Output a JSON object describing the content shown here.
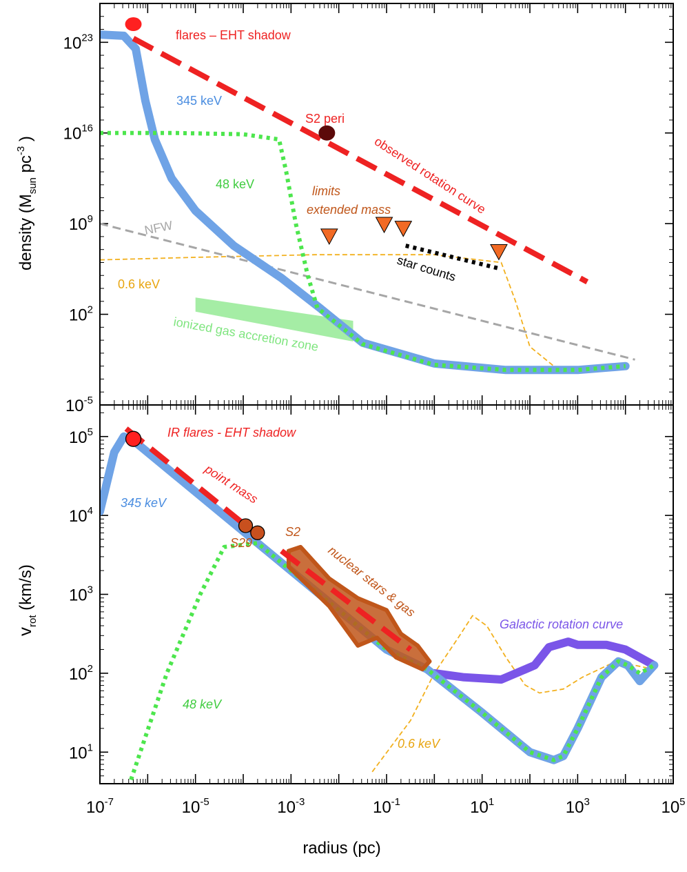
{
  "chart_data": [
    {
      "type": "line",
      "panel": "top",
      "xlabel": "radius (pc)",
      "ylabel": "density (M",
      "ylabel_sub": "sun",
      "ylabel_unit": "pc",
      "ylabel_exp": "-3",
      "ylabel_close": ")",
      "xscale": "log10",
      "yscale": "log10",
      "xlim_log": [
        -7,
        5
      ],
      "ylim_log": [
        -5,
        26
      ],
      "y_tick_labels": [
        {
          "base": "10",
          "exp": "23",
          "log": 23
        },
        {
          "base": "10",
          "exp": "16",
          "log": 16
        },
        {
          "base": "10",
          "exp": "9",
          "log": 9
        },
        {
          "base": "10",
          "exp": "2",
          "log": 2
        },
        {
          "base": "10",
          "exp": "-5",
          "log": -5
        }
      ],
      "series": [
        {
          "name": "345 keV",
          "color": "#6fa3e6",
          "style": "solid-thick",
          "points": [
            [
              -7,
              23.6
            ],
            [
              -6.5,
              23.5
            ],
            [
              -6.25,
              22.5
            ],
            [
              -6.05,
              18.5
            ],
            [
              -5.85,
              15.5
            ],
            [
              -5.5,
              12.5
            ],
            [
              -5.0,
              10.0
            ],
            [
              -4.2,
              7.3
            ],
            [
              -3.2,
              4.8
            ],
            [
              -2.4,
              2.5
            ],
            [
              -1.5,
              -0.2
            ],
            [
              0.0,
              -1.8
            ],
            [
              1.5,
              -2.3
            ],
            [
              3.0,
              -2.3
            ],
            [
              4.0,
              -2.0
            ]
          ]
        },
        {
          "name": "48 keV",
          "color": "#4de64d",
          "style": "dotted",
          "points": [
            [
              -7,
              16.0
            ],
            [
              -5.5,
              16.0
            ],
            [
              -4.0,
              15.9
            ],
            [
              -3.25,
              15.5
            ],
            [
              -3.1,
              13.0
            ],
            [
              -2.9,
              9.0
            ],
            [
              -2.65,
              5.0
            ],
            [
              -2.45,
              2.5
            ],
            [
              -1.5,
              -0.3
            ],
            [
              0.0,
              -1.9
            ],
            [
              1.5,
              -2.3
            ],
            [
              3.0,
              -2.3
            ],
            [
              4.0,
              -2.0
            ]
          ]
        },
        {
          "name": "0.6 keV",
          "color": "#f2b01e",
          "style": "dashed-thin",
          "points": [
            [
              -7,
              6.2
            ],
            [
              -5.0,
              6.4
            ],
            [
              -2.5,
              6.6
            ],
            [
              0.0,
              6.6
            ],
            [
              1.4,
              6.0
            ],
            [
              1.7,
              3.0
            ],
            [
              2.0,
              -0.5
            ],
            [
              2.5,
              -2.0
            ],
            [
              3.0,
              -2.5
            ],
            [
              4.0,
              -2.0
            ]
          ]
        },
        {
          "name": "NFW",
          "color": "#a6a6a6",
          "style": "dashed",
          "points": [
            [
              -7,
              9.0
            ],
            [
              4.2,
              -1.5
            ]
          ]
        },
        {
          "name": "observed rotation curve",
          "color": "#ee2222",
          "style": "dashed-thick",
          "points": [
            [
              -6.3,
              23.3
            ],
            [
              3.2,
              4.5
            ]
          ]
        },
        {
          "name": "star counts",
          "color": "#000000",
          "style": "dotted",
          "points": [
            [
              -0.6,
              7.3
            ],
            [
              1.4,
              5.5
            ]
          ]
        }
      ],
      "markers": [
        {
          "label": "flares – EHT shadow",
          "x": -6.3,
          "y": 24.4,
          "color": "#ff2020",
          "kind": "circle"
        },
        {
          "label": "S2 peri",
          "x": -2.25,
          "y": 16.0,
          "color": "#5c0a0a",
          "kind": "circle"
        }
      ],
      "limits": [
        {
          "x": -2.2,
          "y": 8.0
        },
        {
          "x": -1.05,
          "y": 8.9
        },
        {
          "x": -0.65,
          "y": 8.6
        },
        {
          "x": 1.35,
          "y": 6.8
        }
      ],
      "band": {
        "label": "ionized gas accretion zone",
        "color": "#7fe57f",
        "x0": -5.0,
        "x1": -1.7,
        "y_top0": 3.3,
        "y_top1": 1.5,
        "y_bot0": 2.2,
        "y_bot1": -0.1
      },
      "labels": {
        "flares": "flares – EHT shadow",
        "keV345": "345 keV",
        "s2peri": "S2 peri",
        "observed": "observed rotation curve",
        "keV48": "48 keV",
        "limits": "limits",
        "extended": "extended mass",
        "nfw": "NFW",
        "starcounts": "star counts",
        "keV06": "0.6 keV",
        "ionized": "ionized gas accretion zone"
      }
    },
    {
      "type": "line",
      "panel": "bottom",
      "xlabel": "radius (pc)",
      "ylabel": "v",
      "ylabel_sub": "rot",
      "ylabel_unit": "(km/s)",
      "xscale": "log10",
      "yscale": "log10",
      "xlim_log": [
        -7,
        5
      ],
      "ylim_log": [
        0.6,
        5.4
      ],
      "x_tick_labels": [
        {
          "base": "10",
          "exp": "-7",
          "log": -7
        },
        {
          "base": "10",
          "exp": "-5",
          "log": -5
        },
        {
          "base": "10",
          "exp": "-3",
          "log": -3
        },
        {
          "base": "10",
          "exp": "-1",
          "log": -1
        },
        {
          "base": "10",
          "exp": "1",
          "log": 1
        },
        {
          "base": "10",
          "exp": "3",
          "log": 3
        },
        {
          "base": "10",
          "exp": "5",
          "log": 5
        }
      ],
      "y_tick_labels": [
        {
          "base": "10",
          "exp": "5",
          "log": 5
        },
        {
          "base": "10",
          "exp": "4",
          "log": 4
        },
        {
          "base": "10",
          "exp": "3",
          "log": 3
        },
        {
          "base": "10",
          "exp": "2",
          "log": 2
        },
        {
          "base": "10",
          "exp": "1",
          "log": 1
        }
      ],
      "series": [
        {
          "name": "345 keV",
          "color": "#6fa3e6",
          "style": "solid-thick",
          "points": [
            [
              -7,
              4.05
            ],
            [
              -6.7,
              4.8
            ],
            [
              -6.5,
              5.0
            ],
            [
              -6.3,
              4.95
            ],
            [
              -3.7,
              3.65
            ],
            [
              -1.0,
              2.3
            ],
            [
              -0.15,
              2.05
            ],
            [
              1.0,
              1.5
            ],
            [
              2.0,
              1.0
            ],
            [
              2.5,
              0.9
            ],
            [
              2.7,
              0.95
            ],
            [
              3.0,
              1.3
            ],
            [
              3.5,
              1.95
            ],
            [
              3.85,
              2.15
            ],
            [
              4.05,
              2.1
            ],
            [
              4.3,
              1.9
            ],
            [
              4.6,
              2.1
            ]
          ]
        },
        {
          "name": "48 keV",
          "color": "#4de64d",
          "style": "dotted",
          "points": [
            [
              -6.35,
              0.65
            ],
            [
              -5.6,
              2.0
            ],
            [
              -4.9,
              3.0
            ],
            [
              -4.4,
              3.6
            ],
            [
              -3.7,
              3.65
            ],
            [
              -1.0,
              2.3
            ],
            [
              -0.15,
              2.05
            ],
            [
              1.0,
              1.5
            ],
            [
              2.0,
              1.0
            ],
            [
              2.5,
              0.9
            ],
            [
              2.7,
              0.95
            ],
            [
              3.0,
              1.3
            ],
            [
              3.5,
              1.95
            ],
            [
              3.85,
              2.15
            ],
            [
              4.05,
              2.1
            ],
            [
              4.3,
              2.0
            ],
            [
              4.6,
              2.1
            ]
          ]
        },
        {
          "name": "0.6 keV",
          "color": "#f2b01e",
          "style": "dashed-thin",
          "points": [
            [
              -1.3,
              0.75
            ],
            [
              -0.5,
              1.4
            ],
            [
              0.0,
              2.0
            ],
            [
              0.5,
              2.45
            ],
            [
              0.8,
              2.73
            ],
            [
              1.1,
              2.6
            ],
            [
              1.5,
              2.2
            ],
            [
              1.9,
              1.85
            ],
            [
              2.2,
              1.75
            ],
            [
              2.7,
              1.8
            ],
            [
              3.1,
              1.95
            ],
            [
              3.8,
              2.15
            ],
            [
              4.6,
              2.05
            ]
          ]
        },
        {
          "name": "point mass",
          "color": "#ee2222",
          "style": "dashed-thick",
          "points": [
            [
              -6.45,
              5.1
            ],
            [
              -3.7,
              3.75
            ]
          ]
        },
        {
          "name": "point mass inner",
          "color": "#ee2222",
          "style": "dashed-thick",
          "points": [
            [
              -3.2,
              3.55
            ],
            [
              -0.5,
              2.3
            ]
          ]
        },
        {
          "name": "Galactic rotation curve",
          "color": "#7a55e8",
          "style": "solid-thick",
          "points": [
            [
              0.0,
              2.0
            ],
            [
              0.6,
              1.95
            ],
            [
              1.4,
              1.92
            ],
            [
              2.1,
              2.1
            ],
            [
              2.4,
              2.33
            ],
            [
              2.8,
              2.4
            ],
            [
              3.0,
              2.36
            ],
            [
              3.6,
              2.36
            ],
            [
              4.0,
              2.3
            ],
            [
              4.6,
              2.1
            ]
          ]
        }
      ],
      "markers": [
        {
          "label": "IR flares - EHT shadow",
          "x": -6.3,
          "y": 4.97,
          "color": "#ff2020",
          "kind": "circle"
        },
        {
          "label": "S29",
          "x": -3.95,
          "y": 3.87,
          "color": "#c8501e",
          "kind": "circle"
        },
        {
          "label": "S2",
          "x": -3.7,
          "y": 3.78,
          "color": "#c8501e",
          "kind": "circle"
        }
      ],
      "band": {
        "label": "nuclear stars & gas",
        "color": "#c0561a",
        "points": [
          [
            -3.05,
            3.55
          ],
          [
            -2.8,
            3.6
          ],
          [
            -2.2,
            3.2
          ],
          [
            -1.6,
            2.95
          ],
          [
            -1.0,
            2.8
          ],
          [
            -0.7,
            2.5
          ],
          [
            -0.35,
            2.35
          ],
          [
            -0.1,
            2.15
          ],
          [
            -0.25,
            2.05
          ],
          [
            -0.8,
            2.2
          ],
          [
            -1.2,
            2.45
          ],
          [
            -1.6,
            2.35
          ],
          [
            -2.2,
            2.85
          ],
          [
            -3.05,
            3.35
          ]
        ]
      },
      "labels": {
        "flares": "IR flares - EHT shadow",
        "pointmass": "point mass",
        "keV345": "345 keV",
        "s29": "S29",
        "s2": "S2",
        "nuclear": "nuclear stars & gas",
        "galactic": "Galactic rotation curve",
        "keV48": "48 keV",
        "keV06": "0.6 keV"
      }
    }
  ]
}
